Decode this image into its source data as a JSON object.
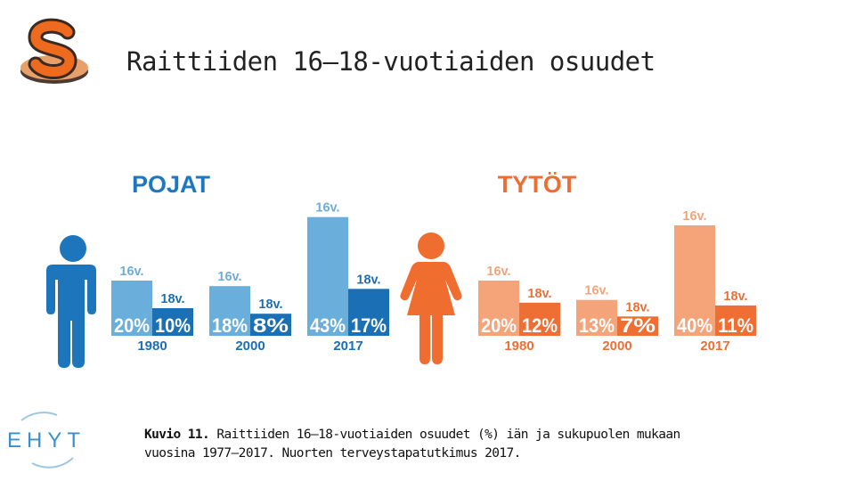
{
  "title": "Raittiiden 16–18-vuotiaiden osuudet",
  "caption": {
    "label": "Kuvio 11.",
    "line1": "Raittiiden 16–18-vuotiaiden osuudet (%) iän ja sukupuolen mukaan",
    "line2": "vuosina 1977–2017. Nuorten terveystapatutkimus 2017."
  },
  "ehyt_logo": "EHYT",
  "colors": {
    "accent_bar": "#ee7f33",
    "boys_light": "#6aaedb",
    "boys_dark": "#1a6fb5",
    "boys_figure": "#1d76bc",
    "girls_light": "#f5a379",
    "girls_dark": "#ee6e34",
    "girls_figure": "#ef6d2f",
    "boys_title": "#1d78c1",
    "girls_title": "#ee6d33"
  },
  "chart_data": {
    "type": "bar",
    "title": "",
    "xlabel": "",
    "ylabel": "%",
    "ylim": [
      0,
      45
    ],
    "categories": [
      "1980",
      "2000",
      "2017"
    ],
    "groups": [
      {
        "name": "POJAT",
        "series": [
          {
            "name": "16v.",
            "values": [
              20,
              18,
              43
            ]
          },
          {
            "name": "18v.",
            "values": [
              10,
              8,
              17
            ]
          }
        ]
      },
      {
        "name": "TYTÖT",
        "series": [
          {
            "name": "16v.",
            "values": [
              20,
              13,
              40
            ]
          },
          {
            "name": "18v.",
            "values": [
              12,
              7,
              11
            ]
          }
        ]
      }
    ]
  }
}
